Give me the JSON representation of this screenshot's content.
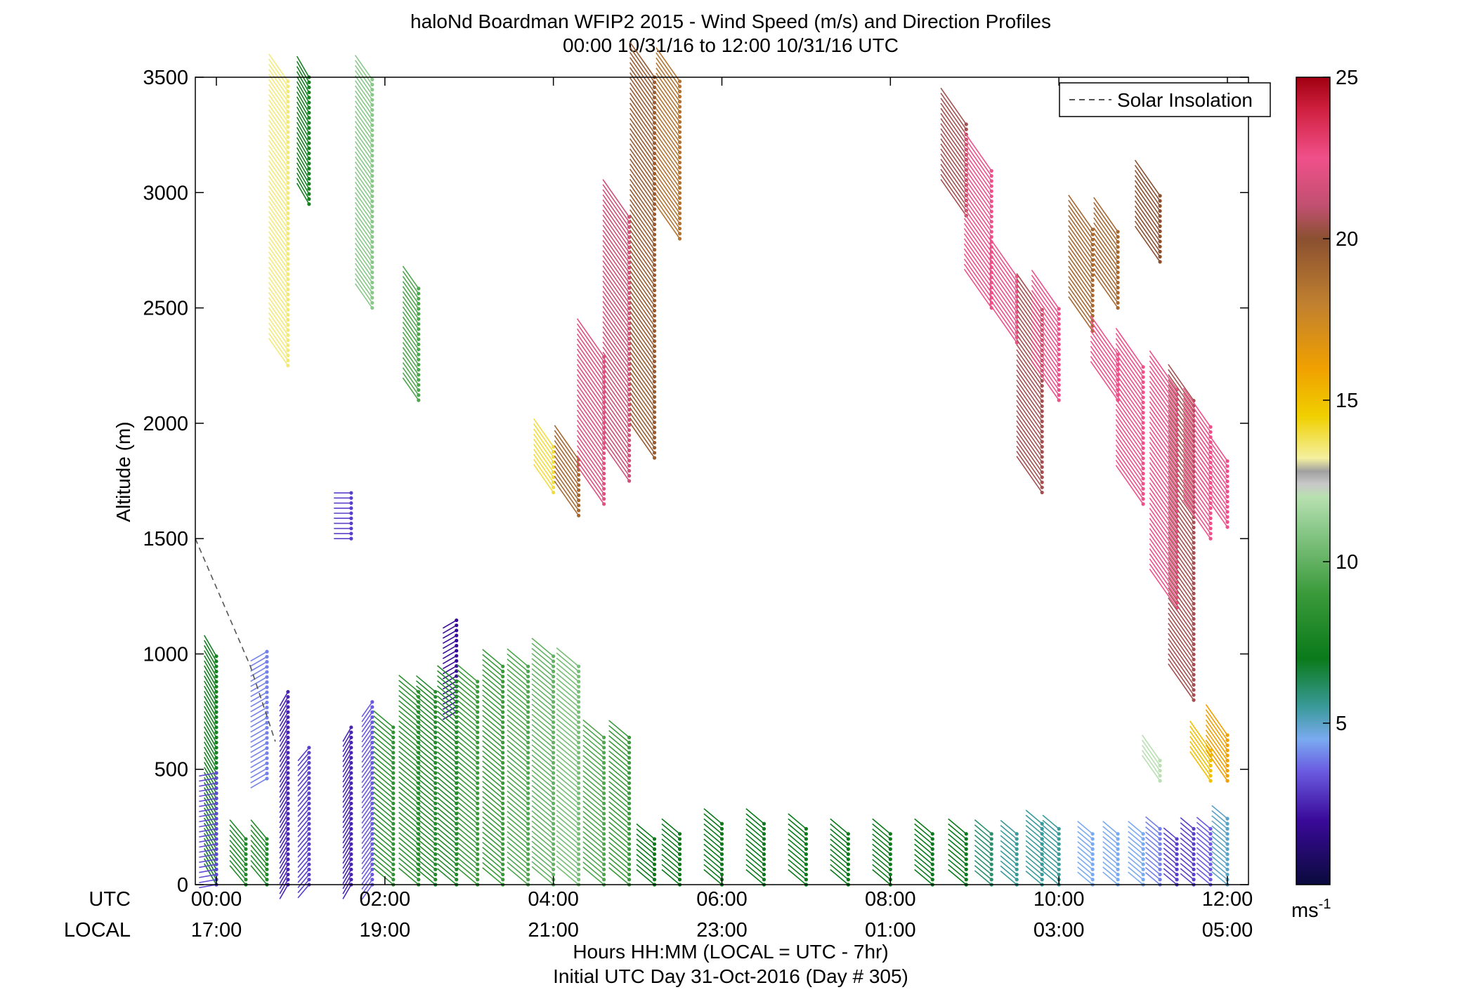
{
  "chart_data": {
    "type": "scatter",
    "title": "haloNd Boardman WFIP2 2015 - Wind Speed (m/s) and Direction Profiles",
    "subtitle": "00:00 10/31/16 to 12:00 10/31/16  UTC",
    "ylabel": "Altitude (m)",
    "xlabel": "Hours HH:MM  (LOCAL = UTC - 7hr)",
    "xlabel2": "Initial UTC Day 31-Oct-2016 (Day # 305)",
    "x_row_labels": [
      "UTC",
      "LOCAL"
    ],
    "xlim": [
      -0.25,
      12.25
    ],
    "ylim": [
      0,
      3500
    ],
    "x_ticks": [
      {
        "x": 0,
        "utc": "00:00",
        "local": "17:00"
      },
      {
        "x": 2,
        "utc": "02:00",
        "local": "19:00"
      },
      {
        "x": 4,
        "utc": "04:00",
        "local": "21:00"
      },
      {
        "x": 6,
        "utc": "06:00",
        "local": "23:00"
      },
      {
        "x": 8,
        "utc": "08:00",
        "local": "01:00"
      },
      {
        "x": 10,
        "utc": "10:00",
        "local": "03:00"
      },
      {
        "x": 12,
        "utc": "12:00",
        "local": "05:00"
      }
    ],
    "y_ticks": [
      {
        "v": 0,
        "label": "0"
      },
      {
        "v": 500,
        "label": "500"
      },
      {
        "v": 1000,
        "label": "1000"
      },
      {
        "v": 1500,
        "label": "1500"
      },
      {
        "v": 2000,
        "label": "2000"
      },
      {
        "v": 2500,
        "label": "2500"
      },
      {
        "v": 3000,
        "label": "3000"
      },
      {
        "v": 3500,
        "label": "3500"
      }
    ],
    "legend": {
      "position": "top-right",
      "entry": "Solar Insolation"
    },
    "solar_insolation": {
      "x": [
        -0.25,
        0.4,
        0.7
      ],
      "y": [
        1500,
        950,
        620
      ]
    },
    "colorbar": {
      "range": [
        0,
        25
      ],
      "ticks": [
        {
          "v": 5,
          "label": "5"
        },
        {
          "v": 10,
          "label": "10"
        },
        {
          "v": 15,
          "label": "15"
        },
        {
          "v": 20,
          "label": "20"
        },
        {
          "v": 25,
          "label": "25"
        }
      ],
      "unit_base": "ms",
      "unit_exp": "-1",
      "stops": [
        {
          "v": 0,
          "color": "#0a0a3c"
        },
        {
          "v": 2,
          "color": "#3a0a9a"
        },
        {
          "v": 3.5,
          "color": "#6a5ae0"
        },
        {
          "v": 4.5,
          "color": "#7aaaf0"
        },
        {
          "v": 5.5,
          "color": "#3a9a9a"
        },
        {
          "v": 7,
          "color": "#0a7a1a"
        },
        {
          "v": 9,
          "color": "#3a9a3a"
        },
        {
          "v": 11,
          "color": "#8ac88a"
        },
        {
          "v": 12,
          "color": "#b8e0b0"
        },
        {
          "v": 12.4,
          "color": "#c8c8c8"
        },
        {
          "v": 12.8,
          "color": "#a0a0a0"
        },
        {
          "v": 13.2,
          "color": "#f4f0a0"
        },
        {
          "v": 14.5,
          "color": "#f0d000"
        },
        {
          "v": 16,
          "color": "#f0a000"
        },
        {
          "v": 18,
          "color": "#c08030"
        },
        {
          "v": 20,
          "color": "#8a5030"
        },
        {
          "v": 21,
          "color": "#c05070"
        },
        {
          "v": 22.5,
          "color": "#f0508a"
        },
        {
          "v": 24,
          "color": "#d02040"
        },
        {
          "v": 25,
          "color": "#a00010"
        }
      ]
    },
    "profiles": [
      {
        "x": 0.0,
        "segments": [
          {
            "y0": 0,
            "y1": 1000,
            "speed": 7.5,
            "dir": 210
          },
          {
            "y0": 0,
            "y1": 500,
            "speed": 3.2,
            "dir": 280
          }
        ]
      },
      {
        "x": 0.35,
        "segments": [
          {
            "y0": 0,
            "y1": 200,
            "speed": 8,
            "dir": 220
          }
        ]
      },
      {
        "x": 0.6,
        "segments": [
          {
            "y0": 0,
            "y1": 200,
            "speed": 8,
            "dir": 220
          },
          {
            "y0": 460,
            "y1": 1020,
            "speed": 4,
            "dir": 300
          }
        ]
      },
      {
        "x": 0.85,
        "segments": [
          {
            "y0": 2250,
            "y1": 3500,
            "speed": 13.5,
            "dir": 215
          },
          {
            "y0": 0,
            "y1": 850,
            "speed": 2.5,
            "dir": 330
          }
        ]
      },
      {
        "x": 1.1,
        "segments": [
          {
            "y0": 2950,
            "y1": 3500,
            "speed": 7.5,
            "dir": 210
          },
          {
            "y0": 0,
            "y1": 600,
            "speed": 3,
            "dir": 320
          }
        ]
      },
      {
        "x": 1.6,
        "segments": [
          {
            "y0": 1500,
            "y1": 1700,
            "speed": 3,
            "dir": 270
          },
          {
            "y0": 0,
            "y1": 700,
            "speed": 2.5,
            "dir": 330
          }
        ]
      },
      {
        "x": 1.85,
        "segments": [
          {
            "y0": 2500,
            "y1": 3500,
            "speed": 11,
            "dir": 215
          },
          {
            "y0": 0,
            "y1": 800,
            "speed": 3.5,
            "dir": 325
          }
        ]
      },
      {
        "x": 2.1,
        "segments": [
          {
            "y0": 0,
            "y1": 700,
            "speed": 8.5,
            "dir": 230
          }
        ]
      },
      {
        "x": 2.4,
        "segments": [
          {
            "y0": 2100,
            "y1": 2600,
            "speed": 9.5,
            "dir": 215
          },
          {
            "y0": 0,
            "y1": 850,
            "speed": 8.5,
            "dir": 230
          }
        ]
      },
      {
        "x": 2.6,
        "segments": [
          {
            "y0": 0,
            "y1": 850,
            "speed": 8,
            "dir": 230
          }
        ]
      },
      {
        "x": 2.85,
        "segments": [
          {
            "y0": 750,
            "y1": 1150,
            "speed": 2,
            "dir": 300
          },
          {
            "y0": 0,
            "y1": 900,
            "speed": 8,
            "dir": 230
          }
        ]
      },
      {
        "x": 3.1,
        "segments": [
          {
            "y0": 0,
            "y1": 900,
            "speed": 9,
            "dir": 230
          }
        ]
      },
      {
        "x": 3.4,
        "segments": [
          {
            "y0": 0,
            "y1": 950,
            "speed": 9,
            "dir": 230
          }
        ]
      },
      {
        "x": 3.7,
        "segments": [
          {
            "y0": 0,
            "y1": 950,
            "speed": 9.5,
            "dir": 230
          }
        ]
      },
      {
        "x": 4.0,
        "segments": [
          {
            "y0": 1700,
            "y1": 1900,
            "speed": 14,
            "dir": 215
          },
          {
            "y0": 0,
            "y1": 1000,
            "speed": 10,
            "dir": 230
          }
        ]
      },
      {
        "x": 4.3,
        "segments": [
          {
            "y0": 1600,
            "y1": 1850,
            "speed": 19,
            "dir": 215
          },
          {
            "y0": 0,
            "y1": 950,
            "speed": 10.5,
            "dir": 230
          }
        ]
      },
      {
        "x": 4.6,
        "segments": [
          {
            "y0": 1650,
            "y1": 2300,
            "speed": 22,
            "dir": 215
          },
          {
            "y0": 0,
            "y1": 650,
            "speed": 9.5,
            "dir": 230
          }
        ]
      },
      {
        "x": 4.9,
        "segments": [
          {
            "y0": 1750,
            "y1": 2900,
            "speed": 21.5,
            "dir": 215
          },
          {
            "y0": 0,
            "y1": 650,
            "speed": 9,
            "dir": 230
          }
        ]
      },
      {
        "x": 5.2,
        "segments": [
          {
            "y0": 1850,
            "y1": 3500,
            "speed": 19.5,
            "dir": 215
          },
          {
            "y0": 0,
            "y1": 200,
            "speed": 7,
            "dir": 230
          }
        ]
      },
      {
        "x": 5.5,
        "segments": [
          {
            "y0": 2800,
            "y1": 3500,
            "speed": 18.5,
            "dir": 215
          },
          {
            "y0": 0,
            "y1": 220,
            "speed": 7,
            "dir": 230
          }
        ]
      },
      {
        "x": 6.0,
        "segments": [
          {
            "y0": 0,
            "y1": 280,
            "speed": 7,
            "dir": 230
          }
        ]
      },
      {
        "x": 6.5,
        "segments": [
          {
            "y0": 0,
            "y1": 270,
            "speed": 7,
            "dir": 230
          }
        ]
      },
      {
        "x": 7.0,
        "segments": [
          {
            "y0": 0,
            "y1": 250,
            "speed": 7,
            "dir": 230
          }
        ]
      },
      {
        "x": 7.5,
        "segments": [
          {
            "y0": 0,
            "y1": 240,
            "speed": 7,
            "dir": 230
          }
        ]
      },
      {
        "x": 8.0,
        "segments": [
          {
            "y0": 0,
            "y1": 230,
            "speed": 7,
            "dir": 230
          }
        ]
      },
      {
        "x": 8.5,
        "segments": [
          {
            "y0": 0,
            "y1": 230,
            "speed": 7,
            "dir": 230
          }
        ]
      },
      {
        "x": 8.9,
        "segments": [
          {
            "y0": 2900,
            "y1": 3300,
            "speed": 20.5,
            "dir": 215
          },
          {
            "y0": 0,
            "y1": 230,
            "speed": 7,
            "dir": 230
          }
        ]
      },
      {
        "x": 9.2,
        "segments": [
          {
            "y0": 2500,
            "y1": 3100,
            "speed": 22.5,
            "dir": 215
          },
          {
            "y0": 0,
            "y1": 220,
            "speed": 6,
            "dir": 230
          }
        ]
      },
      {
        "x": 9.5,
        "segments": [
          {
            "y0": 2350,
            "y1": 2650,
            "speed": 22.5,
            "dir": 215
          },
          {
            "y0": 0,
            "y1": 240,
            "speed": 5.5,
            "dir": 230
          }
        ]
      },
      {
        "x": 9.8,
        "segments": [
          {
            "y0": 1700,
            "y1": 2500,
            "speed": 20.5,
            "dir": 215
          },
          {
            "y0": 0,
            "y1": 270,
            "speed": 5.5,
            "dir": 230
          }
        ]
      },
      {
        "x": 10.0,
        "segments": [
          {
            "y0": 2100,
            "y1": 2500,
            "speed": 22.5,
            "dir": 215
          },
          {
            "y0": 0,
            "y1": 260,
            "speed": 5.5,
            "dir": 230
          }
        ]
      },
      {
        "x": 10.4,
        "segments": [
          {
            "y0": 2400,
            "y1": 2850,
            "speed": 19,
            "dir": 215
          },
          {
            "y0": 0,
            "y1": 240,
            "speed": 4.5,
            "dir": 230
          }
        ]
      },
      {
        "x": 10.7,
        "segments": [
          {
            "y0": 2500,
            "y1": 2850,
            "speed": 19,
            "dir": 215
          },
          {
            "y0": 2100,
            "y1": 2300,
            "speed": 22.5,
            "dir": 215
          },
          {
            "y0": 0,
            "y1": 230,
            "speed": 4.5,
            "dir": 230
          }
        ]
      },
      {
        "x": 11.0,
        "segments": [
          {
            "y0": 1650,
            "y1": 2250,
            "speed": 22.5,
            "dir": 215
          },
          {
            "y0": 0,
            "y1": 230,
            "speed": 4.5,
            "dir": 230
          }
        ]
      },
      {
        "x": 11.2,
        "segments": [
          {
            "y0": 2700,
            "y1": 3000,
            "speed": 20,
            "dir": 215
          },
          {
            "y0": 450,
            "y1": 550,
            "speed": 12,
            "dir": 215
          },
          {
            "y0": 0,
            "y1": 250,
            "speed": 4,
            "dir": 230
          }
        ]
      },
      {
        "x": 11.4,
        "segments": [
          {
            "y0": 1200,
            "y1": 2150,
            "speed": 22.5,
            "dir": 215
          },
          {
            "y0": 0,
            "y1": 200,
            "speed": 3,
            "dir": 230
          }
        ]
      },
      {
        "x": 11.6,
        "segments": [
          {
            "y0": 800,
            "y1": 2100,
            "speed": 20.5,
            "dir": 215
          },
          {
            "y0": 0,
            "y1": 250,
            "speed": 3,
            "dir": 230
          }
        ]
      },
      {
        "x": 11.8,
        "segments": [
          {
            "y0": 1500,
            "y1": 2000,
            "speed": 22.5,
            "dir": 215
          },
          {
            "y0": 450,
            "y1": 600,
            "speed": 15,
            "dir": 215
          },
          {
            "y0": 0,
            "y1": 250,
            "speed": 3.5,
            "dir": 230
          }
        ]
      },
      {
        "x": 12.0,
        "segments": [
          {
            "y0": 1550,
            "y1": 1850,
            "speed": 22.5,
            "dir": 215
          },
          {
            "y0": 450,
            "y1": 650,
            "speed": 16,
            "dir": 215
          },
          {
            "y0": 0,
            "y1": 300,
            "speed": 5,
            "dir": 230
          }
        ]
      }
    ]
  }
}
